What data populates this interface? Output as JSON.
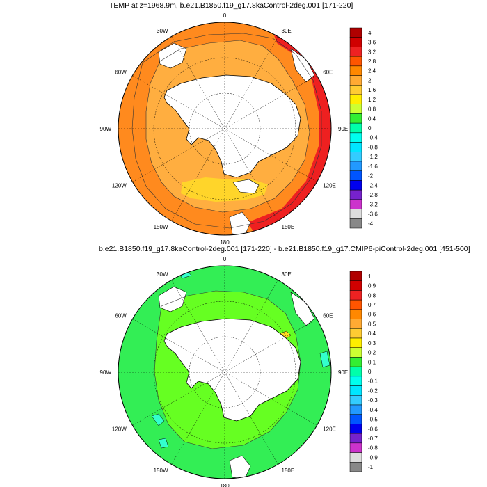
{
  "maps": [
    {
      "title": "TEMP at z=1968.9m, b.e21.B1850.f19_g17.8kaControl-2deg.001 [171-220]",
      "lon_labels": [
        "0",
        "30E",
        "60E",
        "90E",
        "120E",
        "150E",
        "180",
        "150W",
        "120W",
        "90W",
        "60W",
        "30W"
      ],
      "colorbar_labels": [
        "4",
        "3.6",
        "3.2",
        "2.8",
        "2.4",
        "2",
        "1.6",
        "1.2",
        "0.8",
        "0.4",
        "0",
        "-0.4",
        "-0.8",
        "-1.2",
        "-1.6",
        "-2",
        "-2.4",
        "-2.8",
        "-3.2",
        "-3.6",
        "-4"
      ],
      "colorbar_colors": [
        "#b00000",
        "#d00000",
        "#ee2222",
        "#ff5500",
        "#ff8800",
        "#ffaa33",
        "#ffcc33",
        "#ffee00",
        "#ccff33",
        "#33ee33",
        "#00ffaa",
        "#00ffee",
        "#00e6ff",
        "#33ccff",
        "#2299ff",
        "#0055ff",
        "#0000ee",
        "#7722cc",
        "#cc33cc",
        "#dddddd",
        "#888888"
      ]
    },
    {
      "title": "b.e21.B1850.f19_g17.8kaControl-2deg.001 [171-220] - b.e21.B1850.f19_g17.CMIP6-piControl-2deg.001 [451-500]",
      "lon_labels": [
        "0",
        "30E",
        "60E",
        "90E",
        "120E",
        "150E",
        "180",
        "150W",
        "120W",
        "90W",
        "60W",
        "30W"
      ],
      "colorbar_labels": [
        "1",
        "0.9",
        "0.8",
        "0.7",
        "0.6",
        "0.5",
        "0.4",
        "0.3",
        "0.2",
        "0.1",
        "0",
        "-0.1",
        "-0.2",
        "-0.3",
        "-0.4",
        "-0.5",
        "-0.6",
        "-0.7",
        "-0.8",
        "-0.9",
        "-1"
      ],
      "colorbar_colors": [
        "#b00000",
        "#d00000",
        "#ee2222",
        "#ff5500",
        "#ff8800",
        "#ffaa33",
        "#ffcc33",
        "#ffee00",
        "#ccff33",
        "#33ee33",
        "#00ffaa",
        "#00ffee",
        "#00e6ff",
        "#33ccff",
        "#2299ff",
        "#0055ff",
        "#0000ee",
        "#7722cc",
        "#cc33cc",
        "#dddddd",
        "#888888"
      ]
    }
  ],
  "colors": {
    "map1_main_fill": "#ff8a1e",
    "map1_inner_fill": "#ffae40",
    "map1_warm_fill": "#ffd52a",
    "map1_hot_fill": "#ee2020",
    "map2_main_fill": "#33ee55",
    "map2_inner_fill": "#66ff22",
    "map2_cool_fill": "#33ffcc",
    "map2_warm_fill": "#ffdd22",
    "land_fill": "#ffffff"
  }
}
